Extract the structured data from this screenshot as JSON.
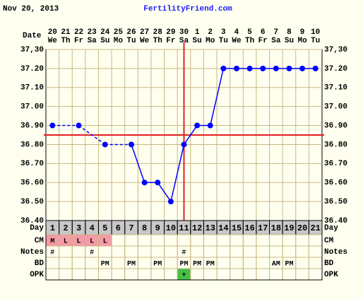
{
  "chart_data": {
    "type": "line",
    "date": "Nov 20, 2013",
    "title": "FertilityFriend.com",
    "date_label": "Date",
    "categories": [
      "20",
      "21",
      "22",
      "23",
      "24",
      "25",
      "26",
      "27",
      "28",
      "29",
      "30",
      "1",
      "2",
      "3",
      "4",
      "5",
      "6",
      "7",
      "8",
      "9",
      "10"
    ],
    "weekdays": [
      "We",
      "Th",
      "Fr",
      "Sa",
      "Su",
      "Mo",
      "Tu",
      "We",
      "Th",
      "Fr",
      "Sa",
      "Su",
      "Mo",
      "Tu",
      "We",
      "Th",
      "Fr",
      "Sa",
      "Su",
      "Mo",
      "Tu"
    ],
    "ylim": [
      36.4,
      37.3
    ],
    "yticks": [
      {
        "value": 36.4,
        "label": "36.40"
      },
      {
        "value": 36.5,
        "label": "36.50"
      },
      {
        "value": 36.6,
        "label": "36.60"
      },
      {
        "value": 36.7,
        "label": "36.70"
      },
      {
        "value": 36.8,
        "label": "36.80"
      },
      {
        "value": 36.9,
        "label": "36.90"
      },
      {
        "value": 37.0,
        "label": "37.00"
      },
      {
        "value": 37.1,
        "label": "37.10"
      },
      {
        "value": 37.2,
        "label": "37.20"
      },
      {
        "value": 37.3,
        "label": "37,30"
      }
    ],
    "grid": true,
    "series": [
      {
        "color": "#0000ff",
        "values": [
          36.9,
          null,
          36.9,
          null,
          36.8,
          null,
          36.8,
          36.6,
          36.6,
          36.5,
          36.8,
          36.9,
          36.9,
          37.2,
          37.2,
          37.2,
          37.2,
          37.2,
          37.2,
          37.2,
          37.2
        ]
      }
    ],
    "coverline": 36.85,
    "coverline_color": "#e02020",
    "ovulation_day": 11,
    "rows": [
      {
        "label": "Day",
        "cells": [
          1,
          2,
          3,
          4,
          5,
          6,
          7,
          8,
          9,
          10,
          11,
          12,
          13,
          14,
          15,
          16,
          17,
          18,
          19,
          20,
          21
        ]
      },
      {
        "label": "CM",
        "color": "#f59aa6",
        "cells": [
          "M",
          "L",
          "L",
          "L",
          "L",
          null,
          null,
          null,
          null,
          null,
          null,
          null,
          null,
          null,
          null,
          null,
          null,
          null,
          null,
          null,
          null
        ]
      },
      {
        "label": "Notes",
        "cells": [
          "#",
          null,
          null,
          "#",
          null,
          null,
          null,
          null,
          null,
          null,
          "#",
          null,
          null,
          null,
          null,
          null,
          null,
          null,
          null,
          null,
          null
        ]
      },
      {
        "label": "BD",
        "cells": [
          null,
          null,
          null,
          null,
          "PM",
          null,
          "PM",
          null,
          "PM",
          null,
          "PM",
          "PM",
          "PM",
          null,
          null,
          null,
          null,
          "AM",
          "PM",
          null,
          null
        ]
      },
      {
        "label": "OPK",
        "color": "#48c048",
        "cells": [
          null,
          null,
          null,
          null,
          null,
          null,
          null,
          null,
          null,
          null,
          "+",
          null,
          null,
          null,
          null,
          null,
          null,
          null,
          null,
          null,
          null
        ]
      }
    ]
  }
}
